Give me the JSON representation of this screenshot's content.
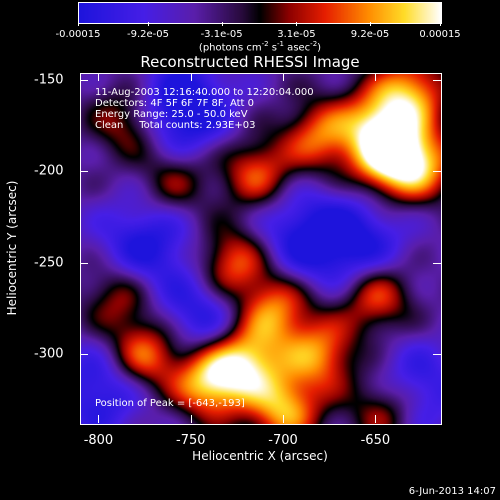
{
  "colorbar": {
    "labels": [
      "-0.00015",
      "-9.2e-05",
      "-3.1e-05",
      "3.1e-05",
      "9.2e-05",
      "0.00015"
    ],
    "values": [
      -0.00015,
      -9.2e-05,
      -3.1e-05,
      3.1e-05,
      9.2e-05,
      0.00015
    ],
    "units_prefix": "(photons cm",
    "units_exp1": "-2",
    "units_mid": " s",
    "units_exp2": "-1",
    "units_mid2": " asec",
    "units_exp3": "-2",
    "units_suffix": ")"
  },
  "chart_data": {
    "type": "heatmap",
    "title": "Reconstructed RHESSI Image",
    "xlabel": "Heliocentric X (arcsec)",
    "ylabel": "Heliocentric Y (arcsec)",
    "xlim": [
      -810,
      -615
    ],
    "ylim": [
      -338,
      -146
    ],
    "xticks": [
      -800,
      -750,
      -700,
      -650
    ],
    "yticks": [
      -150,
      -200,
      -250,
      -300
    ],
    "colormap": "rainbow-to-hot (blue, purple, black, red, orange, yellow, white)",
    "value_range": [
      -0.00015,
      0.00015
    ],
    "peak_position": [
      -643,
      -193
    ],
    "hotspots": [
      {
        "x": -643,
        "y": -193,
        "strength": 1.0
      },
      {
        "x": -648,
        "y": -172,
        "strength": 0.8
      },
      {
        "x": -630,
        "y": -155,
        "strength": 0.75
      },
      {
        "x": -625,
        "y": -195,
        "strength": 0.7
      },
      {
        "x": -740,
        "y": -315,
        "strength": 1.0
      },
      {
        "x": -720,
        "y": -303,
        "strength": 0.9
      },
      {
        "x": -775,
        "y": -300,
        "strength": 0.8
      },
      {
        "x": -700,
        "y": -330,
        "strength": 0.85
      },
      {
        "x": -680,
        "y": -300,
        "strength": 0.75
      },
      {
        "x": -705,
        "y": -275,
        "strength": 0.75
      },
      {
        "x": -728,
        "y": -250,
        "strength": 0.75
      },
      {
        "x": -650,
        "y": -268,
        "strength": 0.7
      },
      {
        "x": -680,
        "y": -180,
        "strength": 0.7
      },
      {
        "x": -715,
        "y": -200,
        "strength": 0.65
      },
      {
        "x": -785,
        "y": -172,
        "strength": 0.55
      },
      {
        "x": -790,
        "y": -268,
        "strength": 0.5
      },
      {
        "x": -760,
        "y": -205,
        "strength": 0.45
      },
      {
        "x": -645,
        "y": -330,
        "strength": 0.65
      }
    ],
    "coldspots": [
      {
        "x": -755,
        "y": -165,
        "strength": 0.8
      },
      {
        "x": -775,
        "y": -240,
        "strength": 0.6
      },
      {
        "x": -745,
        "y": -280,
        "strength": 0.55
      },
      {
        "x": -690,
        "y": -235,
        "strength": 0.55
      },
      {
        "x": -660,
        "y": -240,
        "strength": 0.6
      },
      {
        "x": -630,
        "y": -320,
        "strength": 0.55
      },
      {
        "x": -800,
        "y": -320,
        "strength": 0.55
      }
    ]
  },
  "annotations": {
    "time_range": "11-Aug-2003 12:16:40.000 to 12:20:04.000",
    "detectors": "Detectors: 4F 5F 6F 7F 8F, Att 0",
    "energy_range": "Energy Range: 25.0 - 50.0 keV",
    "clean_counts": "Clean     Total counts: 2.93E+03",
    "peak": "Position of Peak = [-643,-193]"
  },
  "date_stamp": "6-Jun-2013 14:07"
}
